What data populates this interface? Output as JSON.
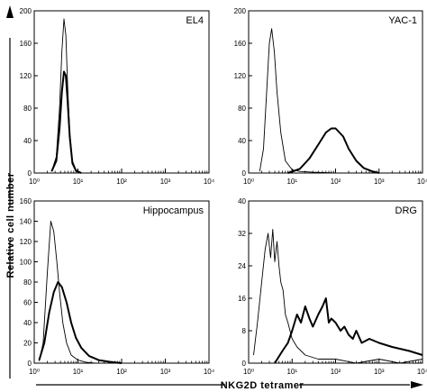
{
  "figure": {
    "ylabel": "Relative cell number",
    "xlabel": "NKG2D tetramer"
  },
  "chart_data": [
    {
      "type": "line",
      "title": "EL4",
      "xscale": "log",
      "xlim": [
        1,
        10000
      ],
      "ylim": [
        0,
        200
      ],
      "yticks": [
        0,
        40,
        80,
        120,
        160,
        200
      ],
      "xticks": [
        1,
        10,
        100,
        1000,
        10000
      ],
      "series": [
        {
          "style": "thin",
          "x": [
            2.5,
            3.2,
            3.8,
            4.3,
            4.8,
            5.3,
            5.8,
            6.5,
            7.5,
            9,
            12
          ],
          "y": [
            2,
            20,
            80,
            150,
            190,
            170,
            110,
            50,
            15,
            4,
            0
          ]
        },
        {
          "style": "thick",
          "x": [
            2.5,
            3.2,
            3.8,
            4.3,
            4.8,
            5.3,
            5.8,
            6.5,
            7.5,
            9,
            12
          ],
          "y": [
            2,
            15,
            55,
            100,
            125,
            120,
            90,
            45,
            12,
            3,
            0
          ]
        }
      ]
    },
    {
      "type": "line",
      "title": "YAC-1",
      "xscale": "log",
      "xlim": [
        1,
        10000
      ],
      "ylim": [
        0,
        200
      ],
      "yticks": [
        0,
        40,
        80,
        120,
        160,
        200
      ],
      "xticks": [
        1,
        10,
        100,
        1000,
        10000
      ],
      "series": [
        {
          "style": "thin",
          "x": [
            1.8,
            2.2,
            2.6,
            3.0,
            3.4,
            3.9,
            4.5,
            5.5,
            7,
            10,
            15,
            30,
            100,
            300
          ],
          "y": [
            2,
            30,
            100,
            160,
            178,
            150,
            100,
            50,
            15,
            4,
            2,
            1,
            0,
            0
          ]
        },
        {
          "style": "thick",
          "x": [
            8,
            15,
            25,
            40,
            60,
            80,
            100,
            150,
            200,
            300,
            450,
            700,
            1000
          ],
          "y": [
            0,
            5,
            18,
            35,
            50,
            55,
            55,
            45,
            30,
            15,
            6,
            2,
            0
          ]
        }
      ]
    },
    {
      "type": "line",
      "title": "Hippocampus",
      "xscale": "log",
      "xlim": [
        1,
        10000
      ],
      "ylim": [
        0,
        160
      ],
      "yticks": [
        0,
        20,
        40,
        60,
        80,
        100,
        120,
        140,
        160
      ],
      "xticks": [
        1,
        10,
        100,
        1000,
        10000
      ],
      "series": [
        {
          "style": "thin",
          "x": [
            1.3,
            1.6,
            2.0,
            2.4,
            2.8,
            3.3,
            3.8,
            4.5,
            5.5,
            7,
            10,
            15,
            25
          ],
          "y": [
            2,
            20,
            90,
            140,
            130,
            100,
            70,
            40,
            20,
            8,
            3,
            1,
            0
          ]
        },
        {
          "style": "thick",
          "x": [
            1.3,
            1.7,
            2.2,
            2.8,
            3.5,
            4.3,
            5.5,
            7,
            9,
            12,
            18,
            30,
            60,
            100
          ],
          "y": [
            3,
            20,
            50,
            70,
            80,
            75,
            60,
            40,
            25,
            15,
            7,
            3,
            1,
            0
          ]
        }
      ]
    },
    {
      "type": "line",
      "title": "DRG",
      "xscale": "log",
      "xlim": [
        1,
        10000
      ],
      "ylim": [
        0,
        40
      ],
      "yticks": [
        0,
        8,
        16,
        24,
        32,
        40
      ],
      "xticks": [
        1,
        10,
        100,
        1000,
        10000
      ],
      "series": [
        {
          "style": "thin",
          "x": [
            1.3,
            1.6,
            2.0,
            2.4,
            2.8,
            3.2,
            3.6,
            4.0,
            4.5,
            5.0,
            5.5,
            6.2,
            7,
            8,
            10,
            13,
            20,
            40,
            100,
            300,
            1000,
            3000,
            10000
          ],
          "y": [
            2,
            10,
            20,
            28,
            32,
            26,
            33,
            25,
            30,
            24,
            20,
            18,
            12,
            10,
            6,
            4,
            2,
            1,
            1,
            0,
            1,
            0,
            1
          ]
        },
        {
          "style": "thick",
          "x": [
            4,
            6,
            8,
            10,
            13,
            16,
            20,
            25,
            30,
            40,
            50,
            60,
            70,
            80,
            100,
            130,
            160,
            200,
            250,
            300,
            400,
            600,
            1000,
            2000,
            5000,
            10000
          ],
          "y": [
            0,
            3,
            5,
            8,
            12,
            10,
            14,
            11,
            9,
            12,
            14,
            16,
            10,
            11,
            10,
            8,
            9,
            7,
            6,
            8,
            5,
            6,
            5,
            4,
            3,
            2
          ]
        }
      ]
    }
  ]
}
